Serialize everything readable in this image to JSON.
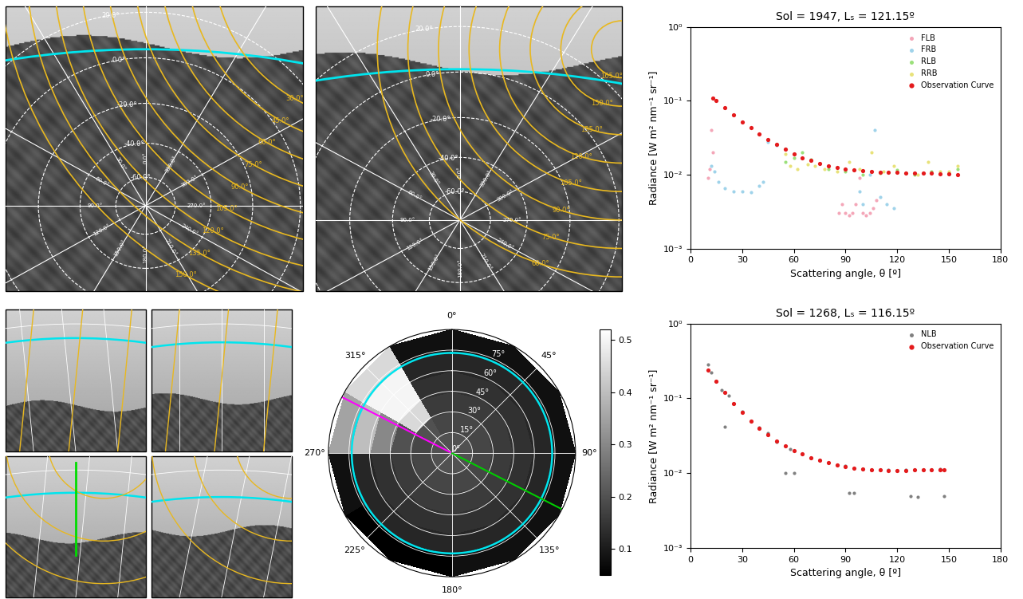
{
  "chart_data": [
    {
      "type": "scatter",
      "title": "Sol = 1947, Lₛ = 121.15º",
      "x_label": "Scattering angle, θ [º]",
      "y_label": "Radiance [W m² nm⁻¹ sr⁻¹]",
      "log": "y",
      "grid": false,
      "legend": "upper right",
      "xlim": [
        0,
        180
      ],
      "xticks": [
        0,
        30,
        60,
        90,
        120,
        150,
        180
      ],
      "ylim": [
        0.001,
        1
      ],
      "yticks": [
        {
          "value": 0.001,
          "label": "10⁻³"
        },
        {
          "value": 0.01,
          "label": "10⁻²"
        },
        {
          "value": 0.1,
          "label": "10⁻¹"
        },
        {
          "value": 1,
          "label": "10⁰"
        }
      ],
      "series": [
        {
          "name": "FLB",
          "color": "#f4a6b8",
          "marker": "o",
          "x": [
            10,
            11,
            12,
            13,
            86,
            88,
            90,
            92,
            94,
            96,
            98,
            100,
            102,
            104,
            106,
            108
          ],
          "values": [
            0.009,
            0.012,
            0.04,
            0.02,
            0.003,
            0.004,
            0.003,
            0.0028,
            0.003,
            0.004,
            0.009,
            0.003,
            0.0028,
            0.003,
            0.0035,
            0.0045
          ]
        },
        {
          "name": "FRB",
          "color": "#9fd3ea",
          "marker": "o",
          "x": [
            12,
            14,
            16,
            20,
            25,
            30,
            35,
            40,
            42,
            45,
            50,
            55,
            98,
            100,
            104,
            107,
            110,
            114,
            118
          ],
          "values": [
            0.013,
            0.011,
            0.008,
            0.0065,
            0.006,
            0.006,
            0.0058,
            0.007,
            0.008,
            0.028,
            0.025,
            0.022,
            0.006,
            0.004,
            0.01,
            0.04,
            0.005,
            0.004,
            0.0035
          ]
        },
        {
          "name": "RLB",
          "color": "#9be07a",
          "marker": "o",
          "x": [
            55,
            60,
            65,
            70,
            80,
            90,
            100,
            110,
            120,
            130,
            140,
            150,
            155
          ],
          "values": [
            0.015,
            0.017,
            0.02,
            0.016,
            0.012,
            0.011,
            0.01,
            0.0105,
            0.0115,
            0.01,
            0.011,
            0.0105,
            0.012
          ]
        },
        {
          "name": "RRB",
          "color": "#e8e27a",
          "marker": "o",
          "x": [
            55,
            58,
            62,
            68,
            72,
            78,
            85,
            92,
            98,
            105,
            112,
            118,
            125,
            132,
            138,
            145,
            150,
            155
          ],
          "values": [
            0.019,
            0.013,
            0.012,
            0.014,
            0.013,
            0.012,
            0.011,
            0.015,
            0.012,
            0.02,
            0.011,
            0.013,
            0.0105,
            0.01,
            0.015,
            0.011,
            0.011,
            0.013
          ]
        },
        {
          "name": "Observation Curve",
          "color": "#e41a1c",
          "marker": "o",
          "x": [
            13,
            15,
            20,
            25,
            30,
            35,
            40,
            45,
            50,
            55,
            60,
            65,
            70,
            75,
            80,
            85,
            90,
            95,
            100,
            105,
            110,
            115,
            120,
            125,
            130,
            135,
            140,
            145,
            150,
            155
          ],
          "values": [
            0.11,
            0.1,
            0.08,
            0.064,
            0.052,
            0.043,
            0.036,
            0.03,
            0.026,
            0.022,
            0.019,
            0.017,
            0.0155,
            0.0143,
            0.0133,
            0.0125,
            0.0119,
            0.0115,
            0.0112,
            0.011,
            0.0109,
            0.0108,
            0.0107,
            0.0106,
            0.0105,
            0.0105,
            0.0104,
            0.0103,
            0.0102,
            0.0101
          ]
        }
      ]
    },
    {
      "type": "scatter",
      "title": "Sol = 1268, Lₛ = 116.15º",
      "x_label": "Scattering angle, θ [º]",
      "y_label": "Radiance [W m² nm⁻¹ sr⁻¹]",
      "log": "y",
      "grid": false,
      "legend": "upper right",
      "xlim": [
        0,
        180
      ],
      "xticks": [
        0,
        30,
        60,
        90,
        120,
        150,
        180
      ],
      "ylim": [
        0.001,
        1
      ],
      "yticks": [
        {
          "value": 0.001,
          "label": "10⁻³"
        },
        {
          "value": 0.01,
          "label": "10⁻²"
        },
        {
          "value": 0.1,
          "label": "10⁻¹"
        },
        {
          "value": 1,
          "label": "10⁰"
        }
      ],
      "series": [
        {
          "name": "NLB",
          "color": "#808080",
          "marker": "o",
          "x": [
            10,
            12,
            15,
            18,
            20,
            22,
            25,
            30,
            35,
            40,
            45,
            50,
            55,
            58,
            60,
            65,
            70,
            75,
            80,
            85,
            90,
            92,
            95,
            100,
            105,
            110,
            115,
            120,
            125,
            128,
            130,
            132,
            135,
            140,
            145,
            147
          ],
          "values": [
            0.28,
            0.22,
            0.17,
            0.13,
            0.042,
            0.11,
            0.085,
            0.066,
            0.05,
            0.041,
            0.034,
            0.026,
            0.01,
            0.021,
            0.01,
            0.018,
            0.016,
            0.015,
            0.014,
            0.013,
            0.0125,
            0.0055,
            0.0055,
            0.0115,
            0.0112,
            0.011,
            0.011,
            0.0108,
            0.011,
            0.005,
            0.011,
            0.0048,
            0.011,
            0.0112,
            0.0113,
            0.005
          ]
        },
        {
          "name": "Observation Curve",
          "color": "#e41a1c",
          "marker": "o",
          "x": [
            10,
            15,
            20,
            25,
            30,
            35,
            40,
            45,
            50,
            55,
            60,
            65,
            70,
            75,
            80,
            85,
            90,
            95,
            100,
            105,
            110,
            115,
            120,
            125,
            130,
            135,
            140,
            145,
            147
          ],
          "values": [
            0.24,
            0.17,
            0.12,
            0.085,
            0.065,
            0.05,
            0.04,
            0.033,
            0.027,
            0.023,
            0.02,
            0.018,
            0.016,
            0.0148,
            0.0138,
            0.013,
            0.0123,
            0.0118,
            0.0115,
            0.0112,
            0.011,
            0.0109,
            0.0108,
            0.0108,
            0.011,
            0.011,
            0.0112,
            0.0112,
            0.0112
          ]
        }
      ]
    },
    {
      "type": "polar_heatmap",
      "grid": true,
      "theta_edges": [
        0,
        30,
        60,
        90,
        120,
        150,
        180,
        210,
        240,
        270,
        300,
        330,
        360
      ],
      "r_edges": [
        0,
        15,
        30,
        45,
        60,
        75,
        90
      ],
      "cells": [
        [
          0.2,
          0.2,
          0.2,
          0.2,
          0.2,
          0.2,
          0.2,
          0.2,
          0.2,
          0.2,
          0.2,
          0.2
        ],
        [
          0.18,
          0.18,
          0.18,
          0.18,
          0.18,
          0.18,
          0.18,
          0.18,
          0.18,
          0.18,
          0.2,
          0.18
        ],
        [
          0.16,
          0.16,
          0.16,
          0.16,
          0.16,
          0.16,
          0.16,
          0.16,
          0.16,
          0.2,
          0.45,
          0.16
        ],
        [
          0.14,
          0.14,
          0.14,
          0.14,
          0.14,
          0.14,
          0.14,
          0.14,
          0.14,
          0.3,
          0.5,
          0.14
        ],
        [
          0.12,
          0.12,
          0.12,
          0.12,
          0.12,
          0.12,
          0.12,
          0.12,
          0.12,
          0.4,
          0.5,
          0.12
        ],
        [
          0.08,
          0.08,
          0.08,
          0.08,
          0.08,
          0.08,
          0.05,
          0.05,
          0.08,
          0.35,
          0.45,
          0.08
        ]
      ],
      "rlim": [
        0,
        90
      ],
      "rticks": [
        {
          "value": 0,
          "label": "0°"
        },
        {
          "value": 15,
          "label": "15°"
        },
        {
          "value": 30,
          "label": "30°"
        },
        {
          "value": 45,
          "label": "45°"
        },
        {
          "value": 60,
          "label": "60°"
        },
        {
          "value": 75,
          "label": "75°"
        }
      ],
      "theta_ticks": [
        {
          "value": 0,
          "label": "0°"
        },
        {
          "value": 45,
          "label": "45°"
        },
        {
          "value": 90,
          "label": "90°"
        },
        {
          "value": 135,
          "label": "135°"
        },
        {
          "value": 180,
          "label": "180°"
        },
        {
          "value": 225,
          "label": "225°"
        },
        {
          "value": 270,
          "label": "270°"
        },
        {
          "value": 315,
          "label": "315°"
        }
      ],
      "colorbar": {
        "lim": [
          0.05,
          0.52
        ],
        "ticks": [
          0.1,
          0.2,
          0.3,
          0.4,
          0.5
        ]
      },
      "circles": [
        {
          "r": 73,
          "color": "#00e5ee"
        }
      ],
      "rays": [
        {
          "azimuth": 297,
          "color": "#ff00ff"
        },
        {
          "azimuth": 117,
          "color": "#00cc00"
        }
      ]
    }
  ],
  "images": [
    {
      "elevation_labels": [
        "-60.0°",
        "-40.0°",
        "-20.0°",
        "0.0°",
        "20.0°"
      ],
      "azimuth_labels": [
        "0.0°",
        "30.0°",
        "60.0°",
        "90.0°",
        "120.0°",
        "150.0°",
        "180.0°",
        "210.0°",
        "240.0°",
        "270.0°",
        "300.0°",
        "330.0°"
      ],
      "scattering_labels": [
        "30.0°",
        "45.0°",
        "60.0°",
        "75.0°",
        "90.0°",
        "105.0°",
        "120.0°",
        "135.0°",
        "150.0°"
      ]
    },
    {
      "elevation_labels": [
        "-60.0°",
        "-40.0°",
        "-20.0°",
        "0.0°",
        "20.0°"
      ],
      "azimuth_labels": [
        "0.0°",
        "30.0°",
        "60.0°",
        "90.0°",
        "120.0°",
        "150.0°",
        "180.0°",
        "210.0°",
        "240.0°",
        "270.0°",
        "300.0°",
        "330.0°"
      ],
      "scattering_labels": [
        "165.0°",
        "150.0°",
        "135.0°",
        "120.0°",
        "105.0°",
        "90.0°",
        "75.0°",
        "60.0°"
      ]
    }
  ]
}
